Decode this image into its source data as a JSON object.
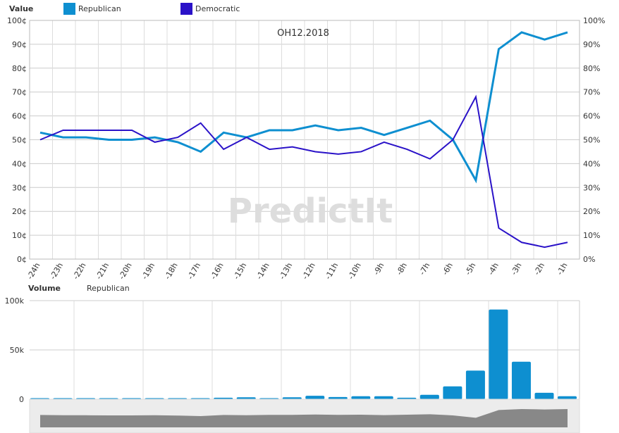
{
  "chart_data": [
    {
      "type": "line",
      "title": "OH12.2018",
      "legend_label": "Value",
      "watermark": "PredictIt",
      "categories": [
        "-24h",
        "-23h",
        "-22h",
        "-21h",
        "-20h",
        "-19h",
        "-18h",
        "-17h",
        "-16h",
        "-15h",
        "-14h",
        "-13h",
        "-12h",
        "-11h",
        "-10h",
        "-9h",
        "-8h",
        "-7h",
        "-6h",
        "-5h",
        "-4h",
        "-3h",
        "-2h",
        "-1h"
      ],
      "series": [
        {
          "name": "Republican",
          "color": "#0e8fd0",
          "values": [
            53,
            51,
            51,
            50,
            50,
            51,
            49,
            45,
            53,
            51,
            54,
            54,
            56,
            54,
            55,
            52,
            55,
            58,
            50,
            33,
            88,
            95,
            92,
            95
          ]
        },
        {
          "name": "Democratic",
          "color": "#2a12c8",
          "values": [
            50,
            54,
            54,
            54,
            54,
            49,
            51,
            57,
            46,
            51,
            46,
            47,
            45,
            44,
            45,
            49,
            46,
            42,
            50,
            68,
            13,
            7,
            5,
            7
          ]
        }
      ],
      "ylim": [
        0,
        100
      ],
      "yticks_left": [
        "0¢",
        "10¢",
        "20¢",
        "30¢",
        "40¢",
        "50¢",
        "60¢",
        "70¢",
        "80¢",
        "90¢",
        "100¢"
      ],
      "yticks_right": [
        "0%",
        "10%",
        "20%",
        "30%",
        "40%",
        "50%",
        "60%",
        "70%",
        "80%",
        "90%",
        "100%"
      ],
      "legend_position": "top-left"
    },
    {
      "type": "bar",
      "legend_label": "Volume",
      "series_name": "Republican",
      "color": "#0e8fd0",
      "values_k": [
        0.3,
        0.3,
        0.3,
        0.3,
        0.3,
        0.3,
        0.3,
        1,
        1.5,
        2,
        1,
        2,
        3.5,
        2.2,
        3,
        3,
        1.5,
        4.5,
        13,
        29,
        91,
        38,
        6.5,
        3
      ],
      "ylim": [
        0,
        100
      ],
      "yticks": [
        "0",
        "50k",
        "100k"
      ]
    }
  ]
}
